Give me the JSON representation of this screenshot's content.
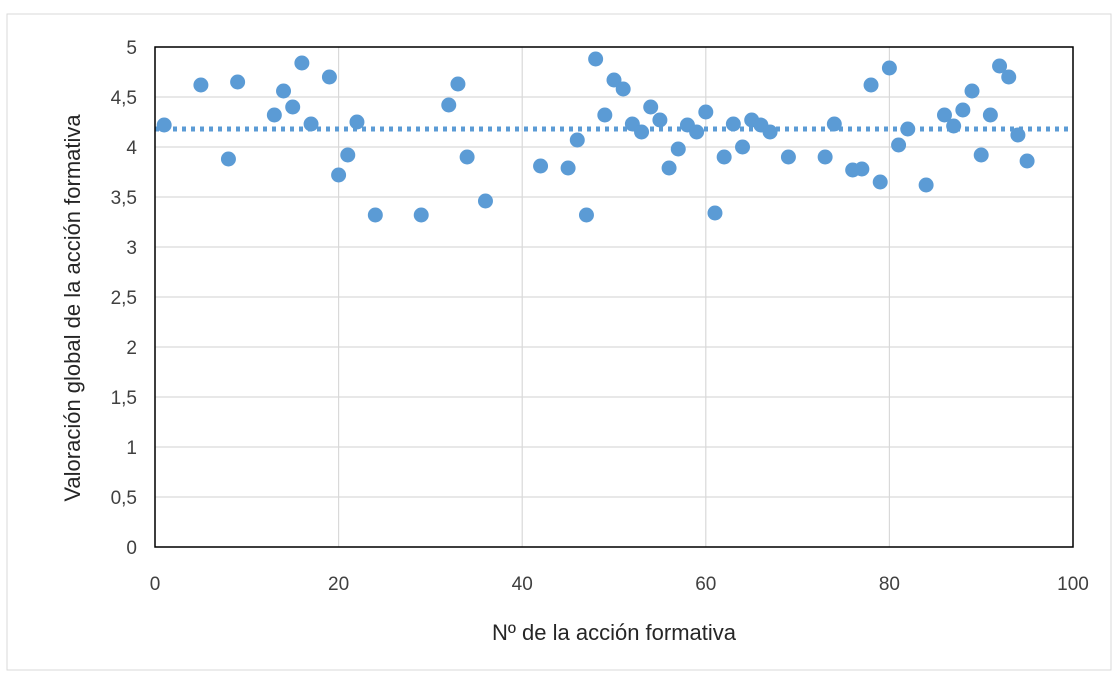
{
  "chart_data": {
    "type": "scatter",
    "title": "",
    "xlabel": "Nº de la acción formativa",
    "ylabel": "Valoración global de la acción formativa",
    "xlim": [
      0,
      100
    ],
    "ylim": [
      0,
      5
    ],
    "x_ticks": [
      "0",
      "20",
      "40",
      "60",
      "80",
      "100"
    ],
    "y_ticks": [
      "0",
      "0,5",
      "1",
      "1,5",
      "2",
      "2,5",
      "3",
      "3,5",
      "4",
      "4,5",
      "5"
    ],
    "grid": true,
    "legend": "none",
    "series": [
      {
        "color": "#5b9bd5",
        "points": [
          [
            1,
            4.22
          ],
          [
            5,
            4.62
          ],
          [
            8,
            3.88
          ],
          [
            9,
            4.65
          ],
          [
            13,
            4.32
          ],
          [
            14,
            4.56
          ],
          [
            15,
            4.4
          ],
          [
            16,
            4.84
          ],
          [
            17,
            4.23
          ],
          [
            19,
            4.7
          ],
          [
            20,
            3.72
          ],
          [
            21,
            3.92
          ],
          [
            22,
            4.25
          ],
          [
            24,
            3.32
          ],
          [
            29,
            3.32
          ],
          [
            32,
            4.42
          ],
          [
            33,
            4.63
          ],
          [
            34,
            3.9
          ],
          [
            36,
            3.46
          ],
          [
            42,
            3.81
          ],
          [
            45,
            3.79
          ],
          [
            46,
            4.07
          ],
          [
            47,
            3.32
          ],
          [
            48,
            4.88
          ],
          [
            49,
            4.32
          ],
          [
            50,
            4.67
          ],
          [
            51,
            4.58
          ],
          [
            52,
            4.23
          ],
          [
            53,
            4.15
          ],
          [
            54,
            4.4
          ],
          [
            55,
            4.27
          ],
          [
            56,
            3.79
          ],
          [
            57,
            3.98
          ],
          [
            58,
            4.22
          ],
          [
            59,
            4.15
          ],
          [
            60,
            4.35
          ],
          [
            61,
            3.34
          ],
          [
            62,
            3.9
          ],
          [
            63,
            4.23
          ],
          [
            64,
            4.0
          ],
          [
            65,
            4.27
          ],
          [
            66,
            4.22
          ],
          [
            67,
            4.15
          ],
          [
            69,
            3.9
          ],
          [
            73,
            3.9
          ],
          [
            74,
            4.23
          ],
          [
            76,
            3.77
          ],
          [
            77,
            3.78
          ],
          [
            78,
            4.62
          ],
          [
            79,
            3.65
          ],
          [
            80,
            4.79
          ],
          [
            81,
            4.02
          ],
          [
            82,
            4.18
          ],
          [
            84,
            3.62
          ],
          [
            86,
            4.32
          ],
          [
            87,
            4.21
          ],
          [
            88,
            4.37
          ],
          [
            89,
            4.56
          ],
          [
            90,
            3.92
          ],
          [
            91,
            4.32
          ],
          [
            92,
            4.81
          ],
          [
            93,
            4.7
          ],
          [
            94,
            4.12
          ],
          [
            95,
            3.86
          ]
        ]
      }
    ],
    "reference_line": {
      "style": "dotted",
      "y": 4.18,
      "color": "#5b9bd5"
    }
  }
}
